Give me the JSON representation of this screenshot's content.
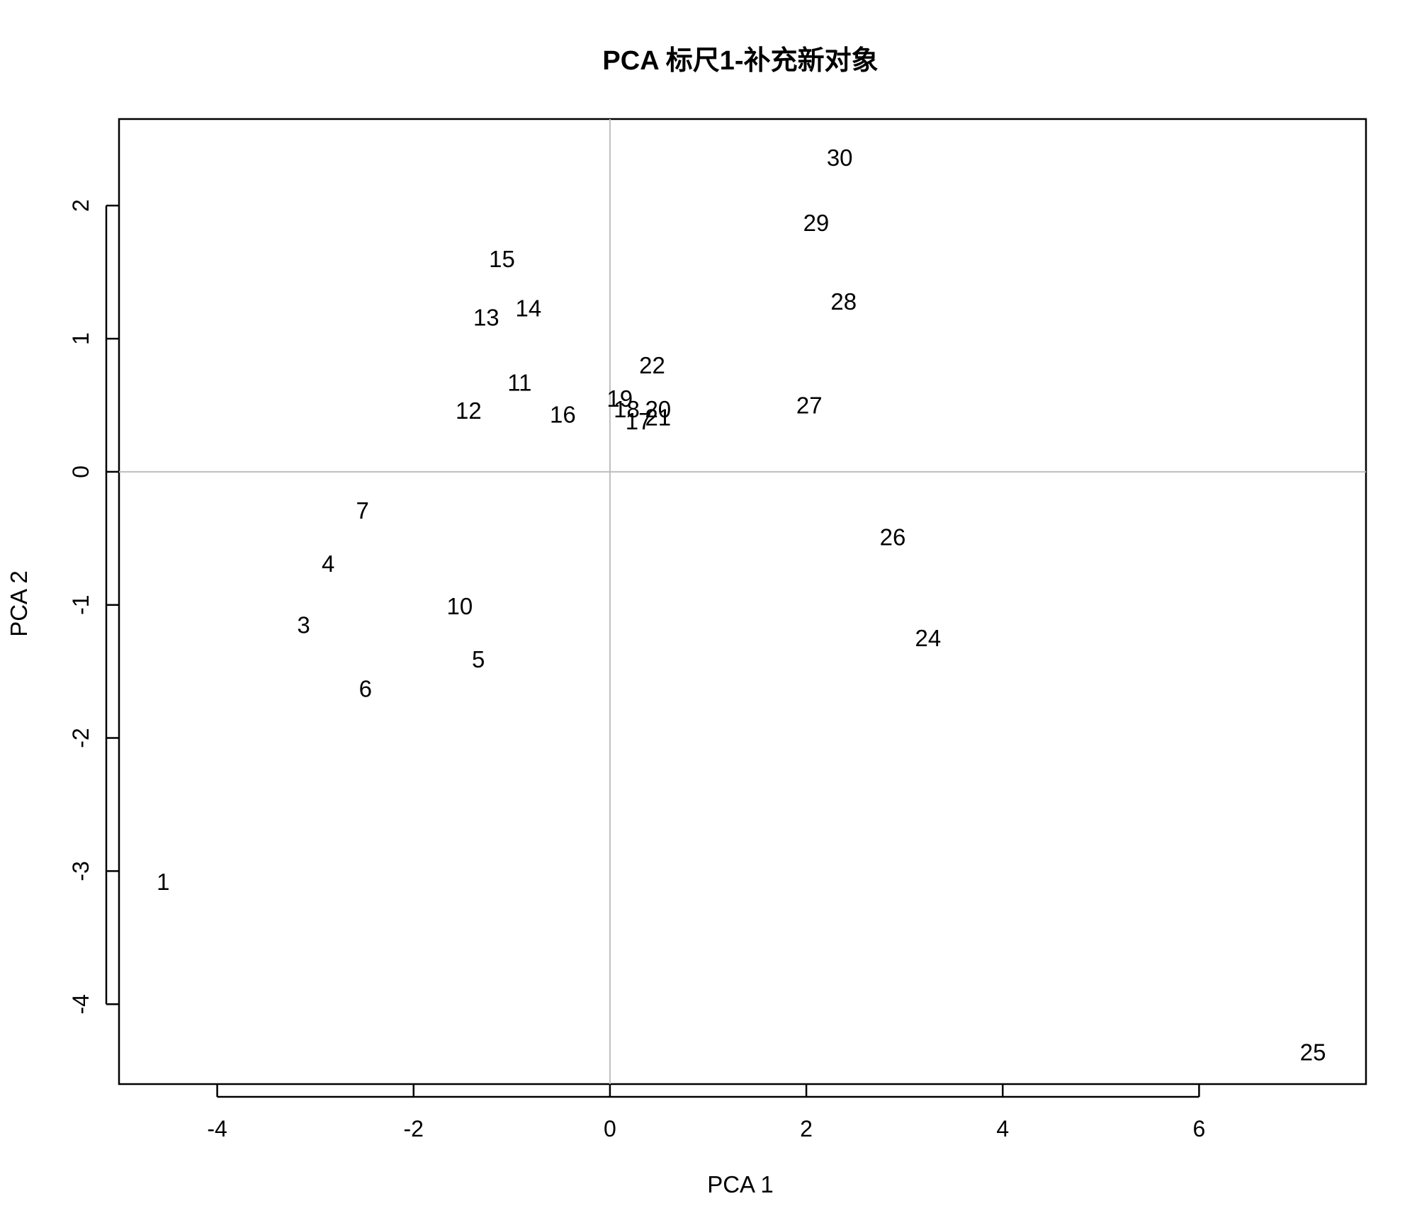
{
  "chart_data": {
    "type": "scatter",
    "title": "PCA 标尺1-补充新对象",
    "xlabel": "PCA 1",
    "ylabel": "PCA 2",
    "xlim": [
      -5.0,
      7.7
    ],
    "ylim": [
      -4.6,
      2.65
    ],
    "xticks": [
      -4,
      -2,
      0,
      2,
      4,
      6
    ],
    "yticks": [
      -4,
      -3,
      -2,
      -1,
      0,
      1,
      2
    ],
    "reference_lines": {
      "x": 0,
      "y": 0,
      "color": "#bebebe"
    },
    "marker": "text-label",
    "points": [
      {
        "label": "1",
        "x": -4.55,
        "y": -3.08
      },
      {
        "label": "3",
        "x": -3.12,
        "y": -1.15
      },
      {
        "label": "4",
        "x": -2.87,
        "y": -0.69
      },
      {
        "label": "5",
        "x": -1.34,
        "y": -1.41
      },
      {
        "label": "6",
        "x": -2.49,
        "y": -1.63
      },
      {
        "label": "7",
        "x": -2.52,
        "y": -0.29
      },
      {
        "label": "10",
        "x": -1.53,
        "y": -1.01
      },
      {
        "label": "11",
        "x": -0.92,
        "y": 0.67
      },
      {
        "label": "12",
        "x": -1.44,
        "y": 0.46
      },
      {
        "label": "13",
        "x": -1.26,
        "y": 1.16
      },
      {
        "label": "14",
        "x": -0.83,
        "y": 1.23
      },
      {
        "label": "15",
        "x": -1.1,
        "y": 1.6
      },
      {
        "label": "16",
        "x": -0.48,
        "y": 0.43
      },
      {
        "label": "17",
        "x": 0.29,
        "y": 0.38
      },
      {
        "label": "18",
        "x": 0.17,
        "y": 0.47
      },
      {
        "label": "19",
        "x": 0.1,
        "y": 0.55
      },
      {
        "label": "20",
        "x": 0.49,
        "y": 0.47
      },
      {
        "label": "21",
        "x": 0.49,
        "y": 0.41
      },
      {
        "label": "22",
        "x": 0.43,
        "y": 0.8
      },
      {
        "label": "24",
        "x": 3.24,
        "y": -1.25
      },
      {
        "label": "25",
        "x": 7.16,
        "y": -4.36
      },
      {
        "label": "26",
        "x": 2.88,
        "y": -0.49
      },
      {
        "label": "27",
        "x": 2.03,
        "y": 0.5
      },
      {
        "label": "28",
        "x": 2.38,
        "y": 1.28
      },
      {
        "label": "29",
        "x": 2.1,
        "y": 1.87
      },
      {
        "label": "30",
        "x": 2.34,
        "y": 2.36
      }
    ]
  }
}
